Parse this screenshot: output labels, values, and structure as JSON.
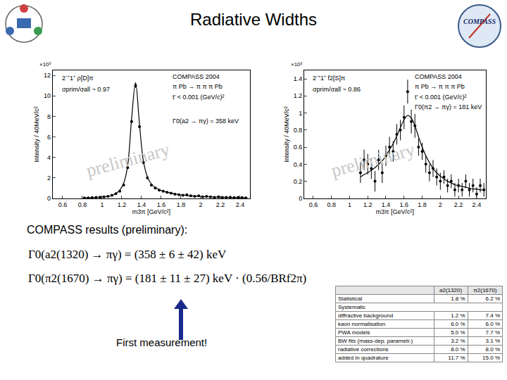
{
  "title": "Radiative Widths",
  "logo": "COMPASS",
  "chart_data": [
    {
      "type": "scatter",
      "x": [
        0.82,
        0.86,
        0.9,
        0.94,
        0.98,
        1.02,
        1.06,
        1.1,
        1.14,
        1.18,
        1.22,
        1.26,
        1.3,
        1.34,
        1.38,
        1.42,
        1.46,
        1.5,
        1.54,
        1.58,
        1.62,
        1.66,
        1.7,
        1.74,
        1.78,
        1.82,
        1.86,
        1.9,
        1.94,
        1.98,
        2.02,
        2.06,
        2.1,
        2.14,
        2.18,
        2.22,
        2.26,
        2.3,
        2.34,
        2.38,
        2.42,
        2.46
      ],
      "series": [
        {
          "type": "scatter",
          "marker": "circle",
          "color": "#000000",
          "values": [
            0.05,
            0.05,
            0.08,
            0.1,
            0.12,
            0.15,
            0.2,
            0.3,
            0.45,
            0.7,
            1.3,
            3.0,
            7.5,
            11.0,
            7.0,
            3.5,
            2.0,
            1.3,
            1.0,
            0.8,
            0.7,
            0.6,
            0.5,
            0.4,
            0.35,
            0.3,
            0.35,
            0.25,
            0.2,
            0.25,
            0.15,
            0.2,
            0.15,
            0.1,
            0.15,
            0.1,
            0.1,
            0.12,
            0.08,
            0.1,
            0.08,
            0.05
          ],
          "errors": [
            0.03,
            0.03,
            0.03,
            0.03,
            0.03,
            0.04,
            0.04,
            0.05,
            0.05,
            0.06,
            0.08,
            0.12,
            0.18,
            0.22,
            0.17,
            0.12,
            0.09,
            0.07,
            0.06,
            0.06,
            0.05,
            0.05,
            0.05,
            0.05,
            0.04,
            0.04,
            0.04,
            0.04,
            0.04,
            0.04,
            0.04,
            0.04,
            0.04,
            0.03,
            0.03,
            0.03,
            0.03,
            0.03,
            0.03,
            0.03,
            0.03,
            0.03
          ]
        },
        {
          "type": "line",
          "line_style": "solid",
          "color": "#000000",
          "values": [
            0.05,
            0.06,
            0.07,
            0.09,
            0.11,
            0.14,
            0.19,
            0.28,
            0.45,
            0.8,
            1.5,
            3.2,
            7.8,
            11.3,
            7.2,
            3.6,
            2.1,
            1.4,
            1.05,
            0.85,
            0.7,
            0.6,
            0.5,
            0.43,
            0.37,
            0.32,
            0.28,
            0.25,
            0.22,
            0.2,
            0.18,
            0.16,
            0.15,
            0.13,
            0.12,
            0.11,
            0.1,
            0.09,
            0.09,
            0.08,
            0.07,
            0.07
          ]
        }
      ],
      "xlim": [
        0.5,
        2.5
      ],
      "xticks": [
        0.6,
        0.8,
        1,
        1.2,
        1.4,
        1.6,
        1.8,
        2,
        2.2,
        2.4
      ],
      "ylim": [
        0,
        12.5
      ],
      "yticks": [
        0,
        2,
        4,
        6,
        8,
        10,
        12
      ],
      "x_label": "m3π [GeV/c²]",
      "y_label": "Intensity / 40MeV/c²",
      "y_multiplier": "×10³",
      "grid": false,
      "annotations": [
        "2⁻⁺1⁺ ρ[D]π",
        "σprim/σall ~ 0.97",
        "COMPASS 2004",
        "π Pb → π π π Pb",
        "t' < 0.001 (GeV/c)²",
        "Γ0(a2 → πγ) = 358 keV"
      ],
      "watermark": "preliminary"
    },
    {
      "type": "scatter",
      "x": [
        1.12,
        1.16,
        1.2,
        1.24,
        1.28,
        1.32,
        1.36,
        1.4,
        1.44,
        1.48,
        1.52,
        1.56,
        1.6,
        1.64,
        1.68,
        1.72,
        1.76,
        1.8,
        1.84,
        1.88,
        1.92,
        1.96,
        2.0,
        2.04,
        2.08,
        2.12,
        2.16,
        2.2,
        2.24,
        2.28,
        2.32,
        2.36,
        2.4,
        2.44,
        2.48
      ],
      "series": [
        {
          "type": "scatter",
          "marker": "circle",
          "color": "#000000",
          "values": [
            0.3,
            0.45,
            0.4,
            0.35,
            0.2,
            0.45,
            0.3,
            0.5,
            0.6,
            0.55,
            0.75,
            0.8,
            0.95,
            1.25,
            0.9,
            0.85,
            0.6,
            0.55,
            0.4,
            0.3,
            0.35,
            0.25,
            0.2,
            0.25,
            0.15,
            0.2,
            0.1,
            0.15,
            0.1,
            0.2,
            0.1,
            0.15,
            0.05,
            0.15,
            0.1
          ],
          "errors": [
            0.12,
            0.12,
            0.12,
            0.12,
            0.12,
            0.12,
            0.12,
            0.12,
            0.12,
            0.12,
            0.12,
            0.12,
            0.14,
            0.14,
            0.14,
            0.14,
            0.1,
            0.1,
            0.1,
            0.1,
            0.1,
            0.1,
            0.1,
            0.08,
            0.08,
            0.08,
            0.08,
            0.08,
            0.08,
            0.08,
            0.08,
            0.08,
            0.08,
            0.08,
            0.08
          ]
        },
        {
          "type": "line",
          "line_style": "solid",
          "color": "#000000",
          "values": [
            0.25,
            0.28,
            0.3,
            0.33,
            0.36,
            0.4,
            0.44,
            0.5,
            0.57,
            0.64,
            0.73,
            0.83,
            0.92,
            0.97,
            0.94,
            0.85,
            0.72,
            0.6,
            0.5,
            0.42,
            0.35,
            0.3,
            0.26,
            0.23,
            0.2,
            0.18,
            0.16,
            0.15,
            0.14,
            0.13,
            0.12,
            0.11,
            0.11,
            0.1,
            0.1
          ]
        }
      ],
      "xlim": [
        0.5,
        2.5
      ],
      "xticks": [
        0.6,
        0.8,
        1,
        1.2,
        1.4,
        1.6,
        1.8,
        2,
        2.2,
        2.4
      ],
      "ylim": [
        0,
        1.5
      ],
      "yticks": [
        0,
        0.2,
        0.4,
        0.6,
        0.8,
        1,
        1.2,
        1.4
      ],
      "x_label": "m3π [GeV/c²]",
      "y_label": "Intensity / 40MeV/c²",
      "y_multiplier": "×10³",
      "grid": false,
      "annotations": [
        "2⁻⁺1⁺ f2[S]π",
        "σprim/σall ~ 0.86",
        "COMPASS 2004",
        "π Pb → π π π Pb",
        "t' < 0.001 (GeV/c)²",
        "Γ0(π2 → πγ) = 181 keV"
      ],
      "watermark": "preliminary"
    }
  ],
  "results": {
    "heading": "COMPASS results (preliminary):",
    "lines": [
      "Γ0(a2(1320) → πγ) = (358 ± 6 ± 42) keV",
      "Γ0(π2(1670) → πγ) = (181 ± 11 ± 27) keV · (0.56/BRf2π)"
    ],
    "note": "First measurement!"
  },
  "table": {
    "columns": [
      "a2(1320)",
      "π2(1670)"
    ],
    "rows": [
      [
        "Statistical",
        "1.8 %",
        "6.2 %"
      ],
      [
        "Systematic"
      ],
      [
        "diffractive background",
        "1.2 %",
        "7.4 %"
      ],
      [
        "kaon normalisation",
        "6.0 %",
        "6.0 %"
      ],
      [
        "PWA models",
        "5.0 %",
        "7.7 %"
      ],
      [
        "BW fits (mass-dep. parametr.)",
        "3.2 %",
        "3.1 %"
      ],
      [
        "radiative corrections",
        "8.0 %",
        "8.0 %"
      ],
      [
        "added in quadrature",
        "11.7 %",
        "15.0 %"
      ]
    ]
  }
}
